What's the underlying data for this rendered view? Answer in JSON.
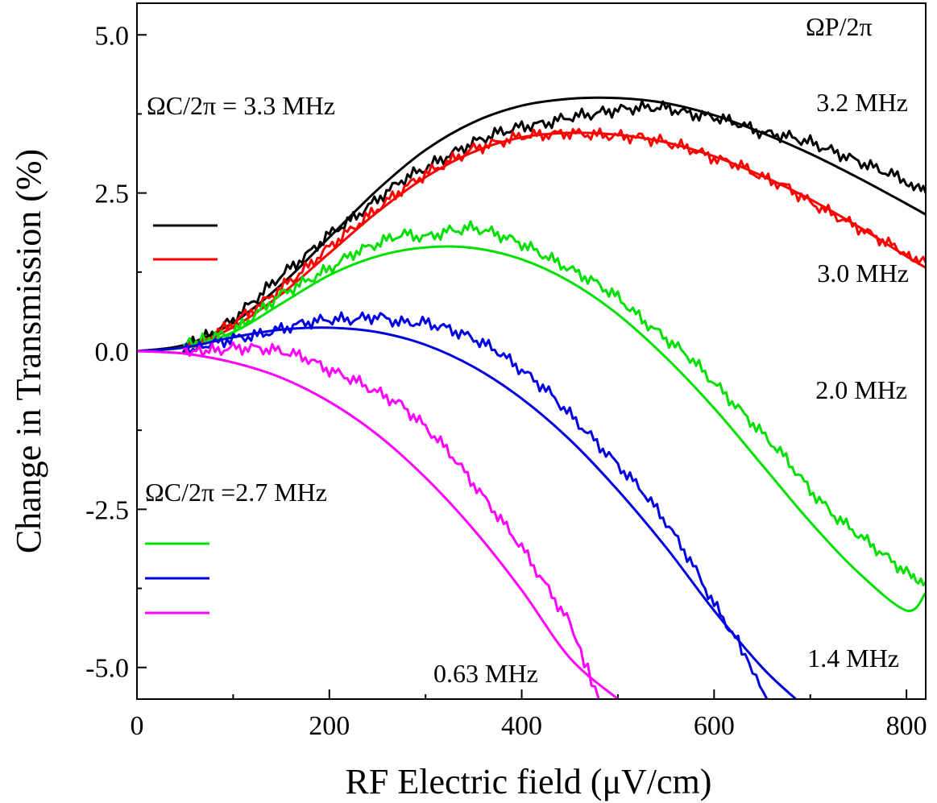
{
  "chart_data": {
    "type": "line",
    "xlabel": "RF Electric field (μV/cm)",
    "ylabel": "Change in Transmission (%)",
    "xlim": [
      0,
      820
    ],
    "ylim": [
      -5.5,
      5.5
    ],
    "xticks": [
      0,
      200,
      400,
      600,
      800
    ],
    "xtick_labels": [
      "0",
      "200",
      "400",
      "600",
      "800"
    ],
    "yticks": [
      5.0,
      2.5,
      0.0,
      -2.5,
      -5.0
    ],
    "ytick_labels": [
      "5.0",
      "2.5",
      "0.0",
      "-2.5",
      "-5.0"
    ],
    "annotations": {
      "probe_header": "ΩP/2π",
      "coupling_group_1": "ΩC/2π =  3.3 MHz",
      "coupling_group_2": "ΩC/2π =2.7 MHz"
    },
    "series": [
      {
        "name": "3.2 MHz",
        "color": "#000000",
        "group": 1,
        "fit_x": [
          0,
          50,
          100,
          150,
          200,
          250,
          300,
          350,
          400,
          450,
          500,
          550,
          600,
          650,
          700,
          750,
          800,
          820
        ],
        "fit_y": [
          0,
          0.1,
          0.45,
          1.05,
          1.8,
          2.55,
          3.18,
          3.62,
          3.88,
          3.99,
          4.0,
          3.92,
          3.73,
          3.45,
          3.12,
          2.74,
          2.33,
          2.16
        ],
        "data_x": [
          48,
          75,
          100,
          125,
          150,
          175,
          200,
          225,
          250,
          275,
          300,
          325,
          350,
          375,
          400,
          425,
          450,
          475,
          500,
          525,
          550,
          575,
          600,
          625,
          650,
          675,
          700,
          725,
          750,
          775,
          800,
          820
        ],
        "data_y": [
          0.05,
          0.25,
          0.5,
          0.85,
          1.2,
          1.5,
          1.85,
          2.1,
          2.4,
          2.7,
          2.9,
          3.1,
          3.3,
          3.45,
          3.55,
          3.6,
          3.7,
          3.75,
          3.82,
          3.85,
          3.85,
          3.75,
          3.7,
          3.6,
          3.45,
          3.4,
          3.3,
          3.15,
          3.0,
          2.85,
          2.7,
          2.5
        ]
      },
      {
        "name": "3.0 MHz",
        "color": "#ff0000",
        "group": 1,
        "fit_x": [
          0,
          50,
          100,
          150,
          200,
          250,
          300,
          350,
          400,
          450,
          500,
          550,
          600,
          650,
          700,
          750,
          800,
          820
        ],
        "fit_y": [
          0,
          0.07,
          0.38,
          0.9,
          1.55,
          2.2,
          2.75,
          3.15,
          3.38,
          3.45,
          3.42,
          3.3,
          3.08,
          2.77,
          2.4,
          1.97,
          1.5,
          1.32
        ],
        "data_x": [
          48,
          75,
          100,
          125,
          150,
          175,
          200,
          225,
          250,
          275,
          300,
          325,
          350,
          375,
          400,
          425,
          450,
          475,
          500,
          525,
          550,
          575,
          600,
          625,
          650,
          675,
          700,
          725,
          750,
          775,
          800,
          820
        ],
        "data_y": [
          0.0,
          0.2,
          0.45,
          0.7,
          1.0,
          1.3,
          1.65,
          1.95,
          2.25,
          2.55,
          2.8,
          3.0,
          3.2,
          3.3,
          3.4,
          3.42,
          3.45,
          3.42,
          3.4,
          3.38,
          3.3,
          3.2,
          3.05,
          2.95,
          2.75,
          2.6,
          2.35,
          2.15,
          1.95,
          1.75,
          1.55,
          1.4
        ]
      },
      {
        "name": "2.0 MHz",
        "color": "#00e000",
        "group": 2,
        "fit_x": [
          0,
          50,
          100,
          150,
          200,
          250,
          300,
          350,
          400,
          450,
          500,
          550,
          600,
          650,
          700,
          750,
          800,
          820
        ],
        "fit_y": [
          0,
          0.06,
          0.3,
          0.75,
          1.2,
          1.5,
          1.64,
          1.63,
          1.45,
          1.1,
          0.58,
          -0.1,
          -0.9,
          -1.8,
          -2.7,
          -3.5,
          -4.1,
          -3.82
        ],
        "data_x": [
          48,
          75,
          100,
          125,
          150,
          175,
          200,
          225,
          250,
          275,
          300,
          325,
          350,
          375,
          400,
          425,
          450,
          475,
          500,
          525,
          550,
          575,
          600,
          625,
          650,
          675,
          700,
          725,
          750,
          775,
          800,
          820
        ],
        "data_y": [
          0.1,
          0.2,
          0.3,
          0.6,
          0.9,
          1.1,
          1.3,
          1.55,
          1.7,
          1.85,
          1.8,
          1.9,
          1.95,
          1.85,
          1.7,
          1.5,
          1.3,
          1.1,
          0.85,
          0.5,
          0.2,
          -0.1,
          -0.5,
          -0.9,
          -1.3,
          -1.7,
          -2.2,
          -2.6,
          -2.9,
          -3.2,
          -3.5,
          -3.65
        ]
      },
      {
        "name": "1.4 MHz",
        "color": "#0000e0",
        "group": 2,
        "fit_x": [
          0,
          50,
          100,
          150,
          200,
          250,
          300,
          350,
          400,
          450,
          500,
          550,
          600,
          650,
          685
        ],
        "fit_y": [
          0,
          0.06,
          0.22,
          0.34,
          0.37,
          0.3,
          0.1,
          -0.25,
          -0.75,
          -1.4,
          -2.2,
          -3.1,
          -4.1,
          -5.0,
          -5.5
        ],
        "data_x": [
          48,
          75,
          100,
          125,
          150,
          175,
          200,
          225,
          250,
          275,
          300,
          325,
          350,
          375,
          400,
          425,
          450,
          475,
          500,
          525,
          550,
          575,
          600,
          625,
          655
        ],
        "data_y": [
          0.0,
          0.1,
          0.2,
          0.25,
          0.35,
          0.45,
          0.5,
          0.5,
          0.55,
          0.45,
          0.45,
          0.35,
          0.2,
          0.0,
          -0.3,
          -0.6,
          -1.0,
          -1.4,
          -1.8,
          -2.2,
          -2.7,
          -3.3,
          -4.0,
          -4.6,
          -5.5
        ]
      },
      {
        "name": "0.63 MHz",
        "color": "#ff00ff",
        "group": 2,
        "fit_x": [
          0,
          50,
          100,
          150,
          200,
          250,
          300,
          350,
          400,
          450,
          500
        ],
        "fit_y": [
          0,
          -0.04,
          -0.18,
          -0.42,
          -0.8,
          -1.32,
          -2.0,
          -2.82,
          -3.78,
          -4.85,
          -5.5
        ],
        "data_x": [
          48,
          75,
          100,
          125,
          150,
          175,
          200,
          225,
          250,
          275,
          300,
          325,
          350,
          375,
          400,
          425,
          450,
          480
        ],
        "data_y": [
          0.0,
          0.0,
          0.05,
          0.05,
          0.0,
          -0.1,
          -0.3,
          -0.45,
          -0.65,
          -0.85,
          -1.2,
          -1.6,
          -2.1,
          -2.6,
          -3.1,
          -3.7,
          -4.3,
          -5.5
        ]
      }
    ]
  }
}
